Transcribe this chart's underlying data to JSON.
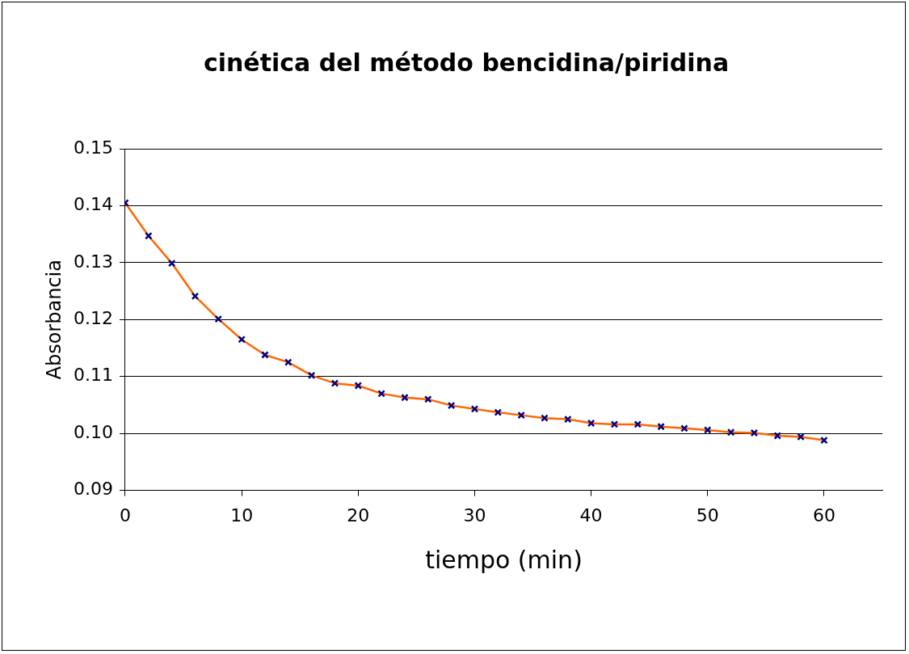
{
  "chart_data": {
    "type": "line",
    "title": "cinética del método bencidina/piridina",
    "xlabel": "tiempo (min)",
    "ylabel": "Absorbancia",
    "x": [
      0,
      2,
      4,
      6,
      8,
      10,
      12,
      14,
      16,
      18,
      20,
      22,
      24,
      26,
      28,
      30,
      32,
      34,
      36,
      38,
      40,
      42,
      44,
      46,
      48,
      50,
      52,
      54,
      56,
      58,
      60
    ],
    "series": [
      {
        "color": "#ff6600",
        "values": [
          0.1405,
          0.1347,
          0.1299,
          0.1241,
          0.1201,
          0.1165,
          0.1138,
          0.1125,
          0.1102,
          0.1088,
          0.1084,
          0.107,
          0.1063,
          0.106,
          0.1049,
          0.1043,
          0.1037,
          0.1032,
          0.1027,
          0.1025,
          0.1018,
          0.1016,
          0.1016,
          0.1012,
          0.1009,
          0.1006,
          0.1002,
          0.1001,
          0.0996,
          0.0994,
          0.0988
        ]
      }
    ],
    "xlim": [
      0,
      65
    ],
    "xticks": [
      0,
      10,
      20,
      30,
      40,
      50,
      60
    ],
    "ylim": [
      0.09,
      0.15
    ],
    "yticks": [
      {
        "value": 0.09,
        "label": "0.09"
      },
      {
        "value": 0.1,
        "label": "0.10"
      },
      {
        "value": 0.11,
        "label": "0.11"
      },
      {
        "value": 0.12,
        "label": "0.12"
      },
      {
        "value": 0.13,
        "label": "0.13"
      },
      {
        "value": 0.14,
        "label": "0.14"
      },
      {
        "value": 0.15,
        "label": "0.15"
      }
    ],
    "grid": "y",
    "marker": "cross",
    "line_style": "solid",
    "legend": false
  }
}
